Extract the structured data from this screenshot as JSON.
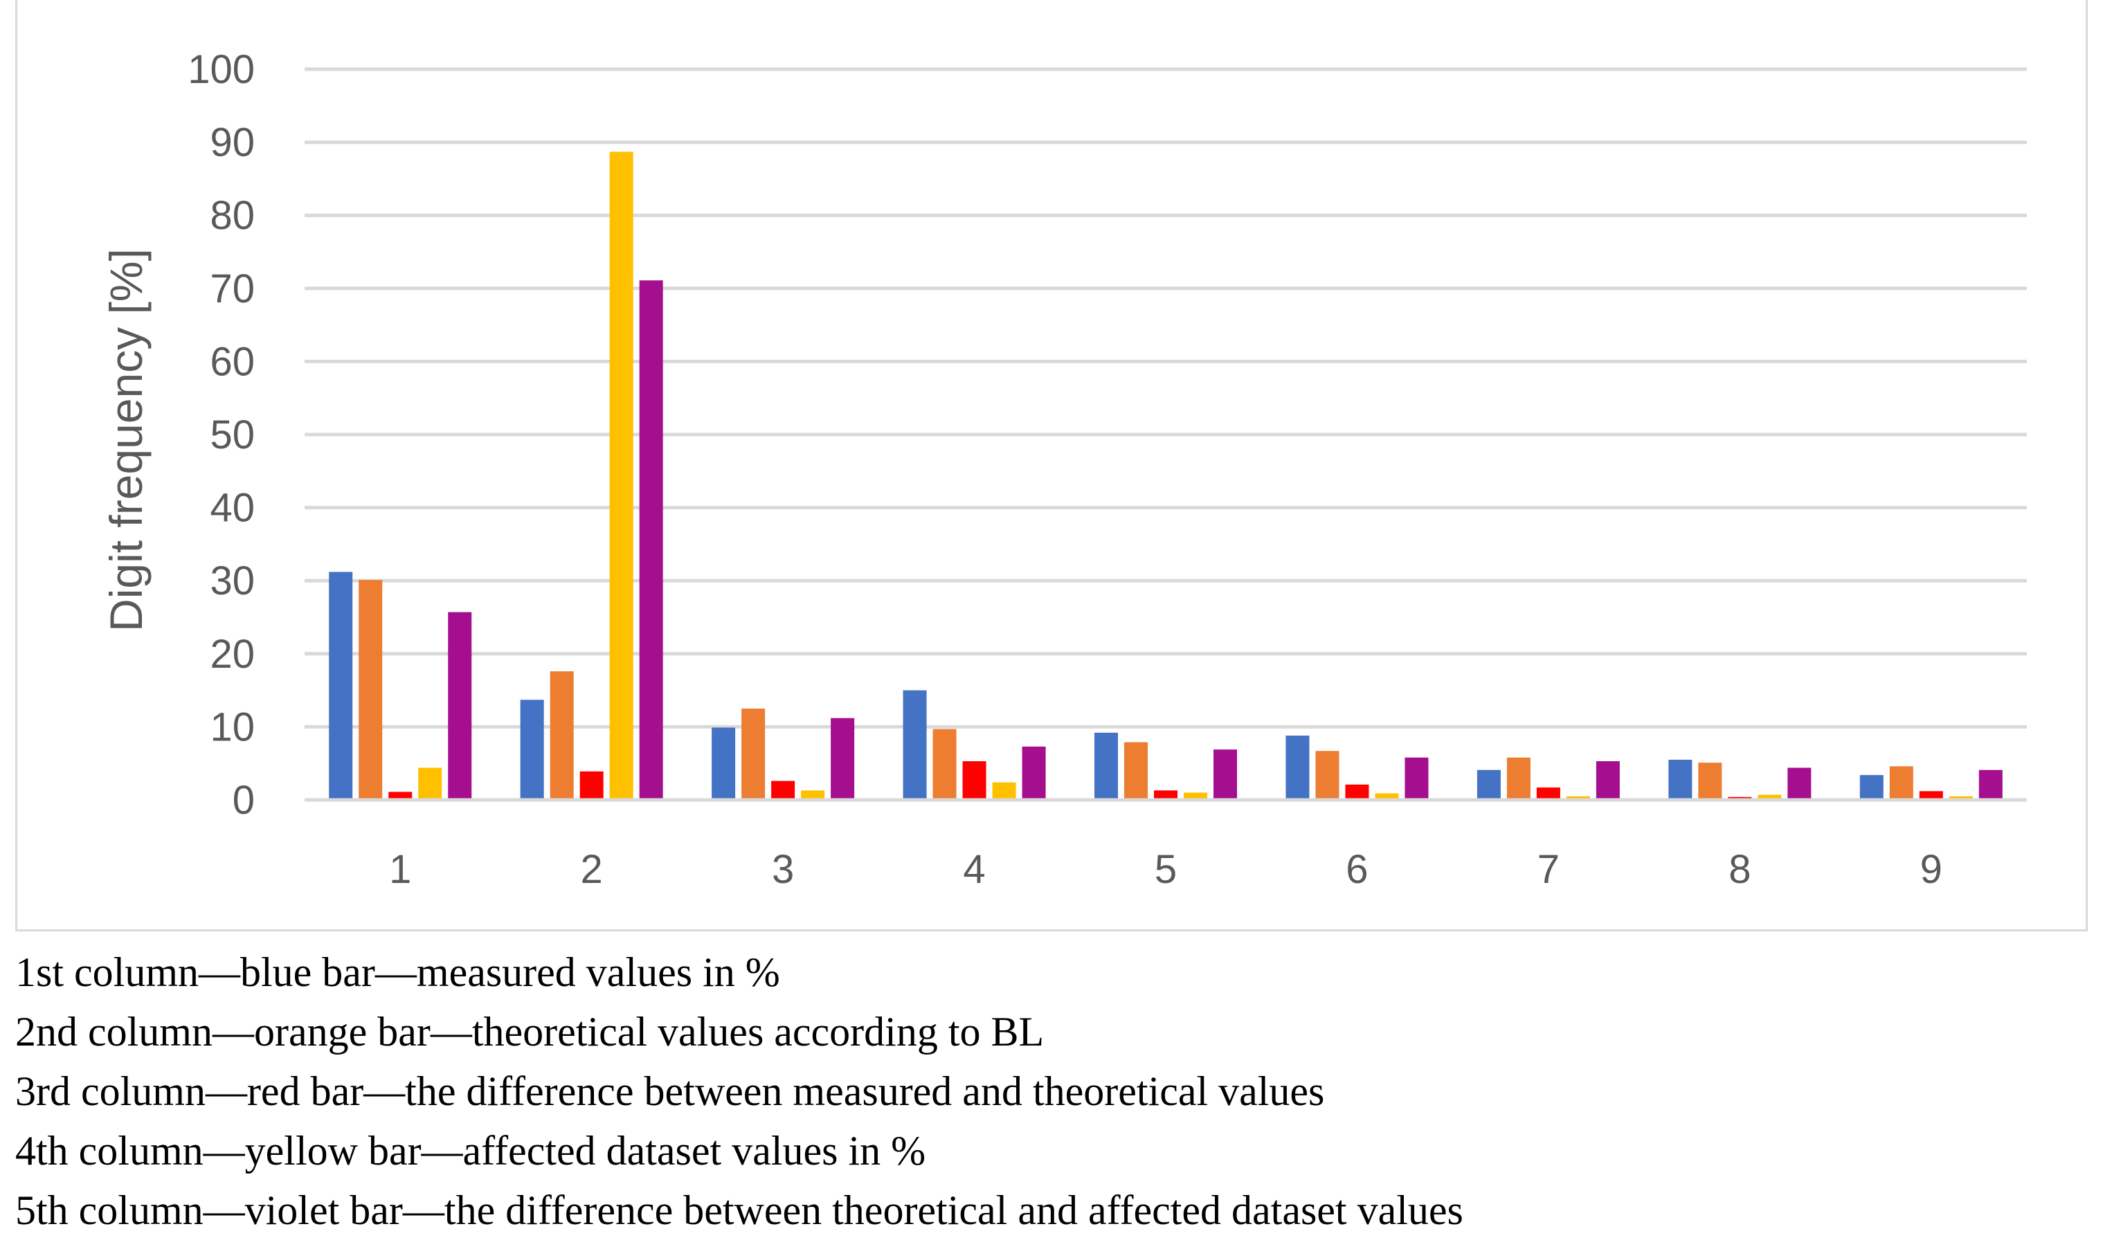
{
  "chart_data": {
    "type": "bar",
    "title": "",
    "xlabel": "",
    "ylabel": "Digit frequency [%]",
    "ylim": [
      0,
      100
    ],
    "yticks": [
      0,
      10,
      20,
      30,
      40,
      50,
      60,
      70,
      80,
      90,
      100
    ],
    "grid": true,
    "categories": [
      "1",
      "2",
      "3",
      "4",
      "5",
      "6",
      "7",
      "8",
      "9"
    ],
    "series": [
      {
        "name": "measured values in %",
        "color": "#4472C4",
        "values": [
          31.2,
          13.7,
          9.9,
          15.0,
          9.2,
          8.8,
          4.1,
          5.5,
          3.4
        ]
      },
      {
        "name": "theoretical values according to BL",
        "color": "#ED7D31",
        "values": [
          30.1,
          17.6,
          12.5,
          9.7,
          7.9,
          6.7,
          5.8,
          5.1,
          4.6
        ]
      },
      {
        "name": "the difference between measured and theoretical values",
        "color": "#FF0000",
        "values": [
          1.1,
          3.9,
          2.6,
          5.3,
          1.3,
          2.1,
          1.7,
          0.4,
          1.2
        ]
      },
      {
        "name": "affected dataset values in %",
        "color": "#FFC000",
        "values": [
          4.4,
          88.7,
          1.3,
          2.4,
          1.0,
          0.9,
          0.5,
          0.7,
          0.5
        ]
      },
      {
        "name": "the difference between theoretical and affected dataset values",
        "color": "#A50E8F",
        "values": [
          25.7,
          71.1,
          11.2,
          7.3,
          6.9,
          5.8,
          5.3,
          4.4,
          4.1
        ]
      }
    ]
  },
  "legend": {
    "lines": [
      "1st column—blue bar—measured values in %",
      "2nd column—orange bar—theoretical values according to BL",
      "3rd column—red bar—the difference between measured and theoretical values",
      "4th column—yellow bar—affected dataset values in %",
      "5th column—violet bar—the difference between theoretical and affected dataset values"
    ]
  },
  "colors": {
    "grid": "#d9d9d9",
    "axis_text": "#595959"
  }
}
